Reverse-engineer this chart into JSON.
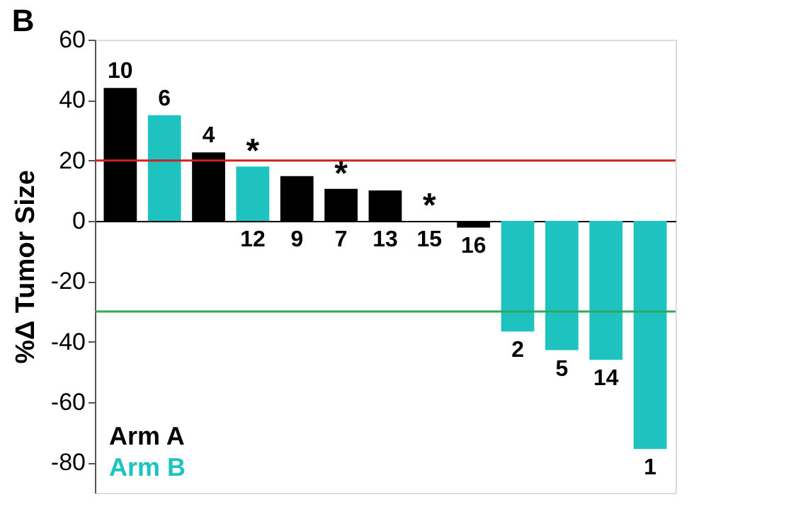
{
  "chart_data": {
    "type": "bar",
    "title": "B",
    "ylabel": "%Δ Tumor Size",
    "categories": [
      "10",
      "6",
      "4",
      "12",
      "9",
      "7",
      "13",
      "15",
      "16",
      "2",
      "5",
      "14",
      "1"
    ],
    "series": [
      {
        "name": "Arm A",
        "color": "#000000",
        "values": [
          44,
          null,
          22.7,
          null,
          14.8,
          10.6,
          10.1,
          0,
          -2.2,
          null,
          null,
          null,
          null
        ]
      },
      {
        "name": "Arm B",
        "color": "#1ec3c0",
        "values": [
          null,
          35,
          null,
          18,
          null,
          null,
          null,
          null,
          null,
          -36.6,
          -42.8,
          -46,
          -75.5
        ]
      }
    ],
    "ylim": [
      -90,
      60
    ],
    "yticks": [
      -80,
      -60,
      -40,
      -20,
      0,
      20,
      40,
      60
    ],
    "ref_lines": [
      {
        "axis": "y",
        "value": 20,
        "color": "#cc2222"
      },
      {
        "axis": "y",
        "value": -30,
        "color": "#2ea85a"
      }
    ],
    "annotations": [
      {
        "text": "*",
        "x": "12",
        "y": 18
      },
      {
        "text": "*",
        "x": "7",
        "y": 10.6
      },
      {
        "text": "*",
        "x": "15",
        "y": 0
      }
    ],
    "legend": "bottom left",
    "grid": false,
    "tick_labels": "y"
  }
}
